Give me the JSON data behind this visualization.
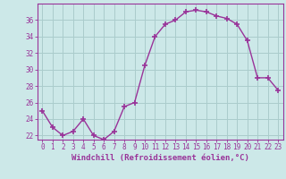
{
  "x": [
    0,
    1,
    2,
    3,
    4,
    5,
    6,
    7,
    8,
    9,
    10,
    11,
    12,
    13,
    14,
    15,
    16,
    17,
    18,
    19,
    20,
    21,
    22,
    23
  ],
  "y": [
    25.0,
    23.0,
    22.0,
    22.5,
    24.0,
    22.0,
    21.5,
    22.5,
    25.5,
    26.0,
    30.5,
    34.0,
    35.5,
    36.0,
    37.0,
    37.2,
    37.0,
    36.5,
    36.2,
    35.5,
    33.5,
    29.0,
    29.0,
    27.5
  ],
  "line_color": "#993399",
  "marker": "+",
  "marker_size": 5,
  "bg_color": "#cce8e8",
  "grid_color": "#aacccc",
  "xlabel": "Windchill (Refroidissement éolien,°C)",
  "ylabel": "",
  "ylim": [
    21.5,
    38.0
  ],
  "yticks": [
    22,
    24,
    26,
    28,
    30,
    32,
    34,
    36
  ],
  "xlim": [
    -0.5,
    23.5
  ],
  "xticks": [
    0,
    1,
    2,
    3,
    4,
    5,
    6,
    7,
    8,
    9,
    10,
    11,
    12,
    13,
    14,
    15,
    16,
    17,
    18,
    19,
    20,
    21,
    22,
    23
  ],
  "tick_label_fontsize": 5.5,
  "xlabel_fontsize": 6.5,
  "linewidth": 1.0,
  "marker_linewidth": 1.2
}
